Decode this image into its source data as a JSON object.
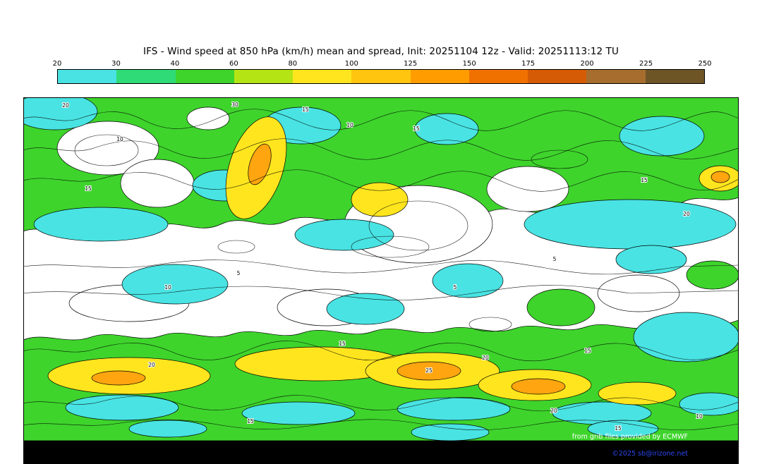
{
  "title": "IFS - Wind speed at 850 hPa (km/h) mean and spread, Init: 20251104 12z - Valid: 20251113:12 TU",
  "colorbar": {
    "ticks": [
      "20",
      "30",
      "40",
      "60",
      "80",
      "100",
      "125",
      "150",
      "175",
      "200",
      "225",
      "250"
    ],
    "segment_colors": [
      "#49e3e3",
      "#2edb77",
      "#3ed42c",
      "#b5e414",
      "#ffe51e",
      "#ffc50f",
      "#ff9c00",
      "#f17100",
      "#d55c04",
      "#a76d2e",
      "#6e5526"
    ]
  },
  "palette": {
    "cyan": "#49e3e3",
    "green": "#3ed42c",
    "yellow": "#ffe51e",
    "orange": "#ffa50f",
    "white": "#ffffff",
    "footer_black": "#000000",
    "copyright_blue": "#2a46ee"
  },
  "map": {
    "contour_labels": [
      "20",
      "30",
      "15",
      "10",
      "15",
      "10",
      "15",
      "15",
      "20",
      "5",
      "5",
      "10",
      "5",
      "15",
      "20",
      "25",
      "20",
      "15",
      "15",
      "20",
      "15",
      "10"
    ],
    "attribution": "from grib files provided by ECMWF",
    "copyright": "©2025 sb@irizone.net"
  },
  "chart_data": {
    "type": "heatmap",
    "title": "IFS - Wind speed at 850 hPa (km/h) mean and spread",
    "init": "20251104 12z",
    "valid": "20251113:12 TU",
    "units": "km/h",
    "legend_ticks": [
      20,
      30,
      40,
      60,
      80,
      100,
      125,
      150,
      175,
      200,
      225,
      250
    ],
    "contour_line_values_visible": [
      5,
      10,
      15,
      20,
      25,
      30
    ],
    "legend_position": "top"
  }
}
